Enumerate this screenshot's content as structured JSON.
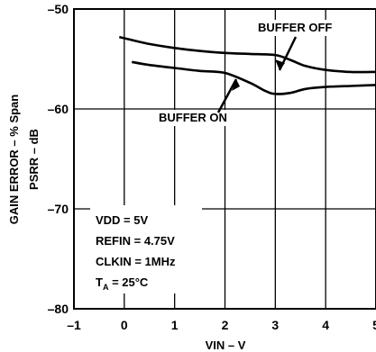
{
  "chart_data": {
    "type": "line",
    "xlabel": "VIN – V",
    "ylabel_outer": "GAIN ERROR – % Span",
    "ylabel_inner": "PSRR – dB",
    "xlim": [
      -1,
      5
    ],
    "ylim": [
      -80,
      -50
    ],
    "x_ticks": [
      "–1",
      "0",
      "1",
      "2",
      "3",
      "4",
      "5"
    ],
    "y_ticks": [
      "–50",
      "–60",
      "–70",
      "–80"
    ],
    "grid": true,
    "series": [
      {
        "name": "BUFFER OFF",
        "x": [
          -0.1,
          0.5,
          1.0,
          1.5,
          2.0,
          2.5,
          3.0,
          3.3,
          3.6,
          4.0,
          4.5,
          5.0
        ],
        "y": [
          -52.8,
          -53.5,
          -53.9,
          -54.2,
          -54.4,
          -54.5,
          -54.6,
          -55.1,
          -55.7,
          -56.1,
          -56.3,
          -56.3
        ]
      },
      {
        "name": "BUFFER ON",
        "x": [
          0.15,
          0.5,
          1.0,
          1.5,
          2.0,
          2.5,
          2.8,
          3.0,
          3.3,
          3.6,
          4.0,
          4.5,
          5.0
        ],
        "y": [
          -55.3,
          -55.6,
          -55.9,
          -56.2,
          -56.4,
          -57.4,
          -58.2,
          -58.5,
          -58.4,
          -58.0,
          -57.8,
          -57.7,
          -57.6
        ]
      }
    ],
    "annotations": {
      "buffer_off": "BUFFER OFF",
      "buffer_on": "BUFFER ON"
    },
    "conditions": {
      "vdd": "VDD = 5V",
      "refin": "REFIN = 4.75V",
      "clkin": "CLKIN = 1MHz",
      "ta_main": "T",
      "ta_sub": "A",
      "ta_rest": " = 25°C"
    }
  }
}
